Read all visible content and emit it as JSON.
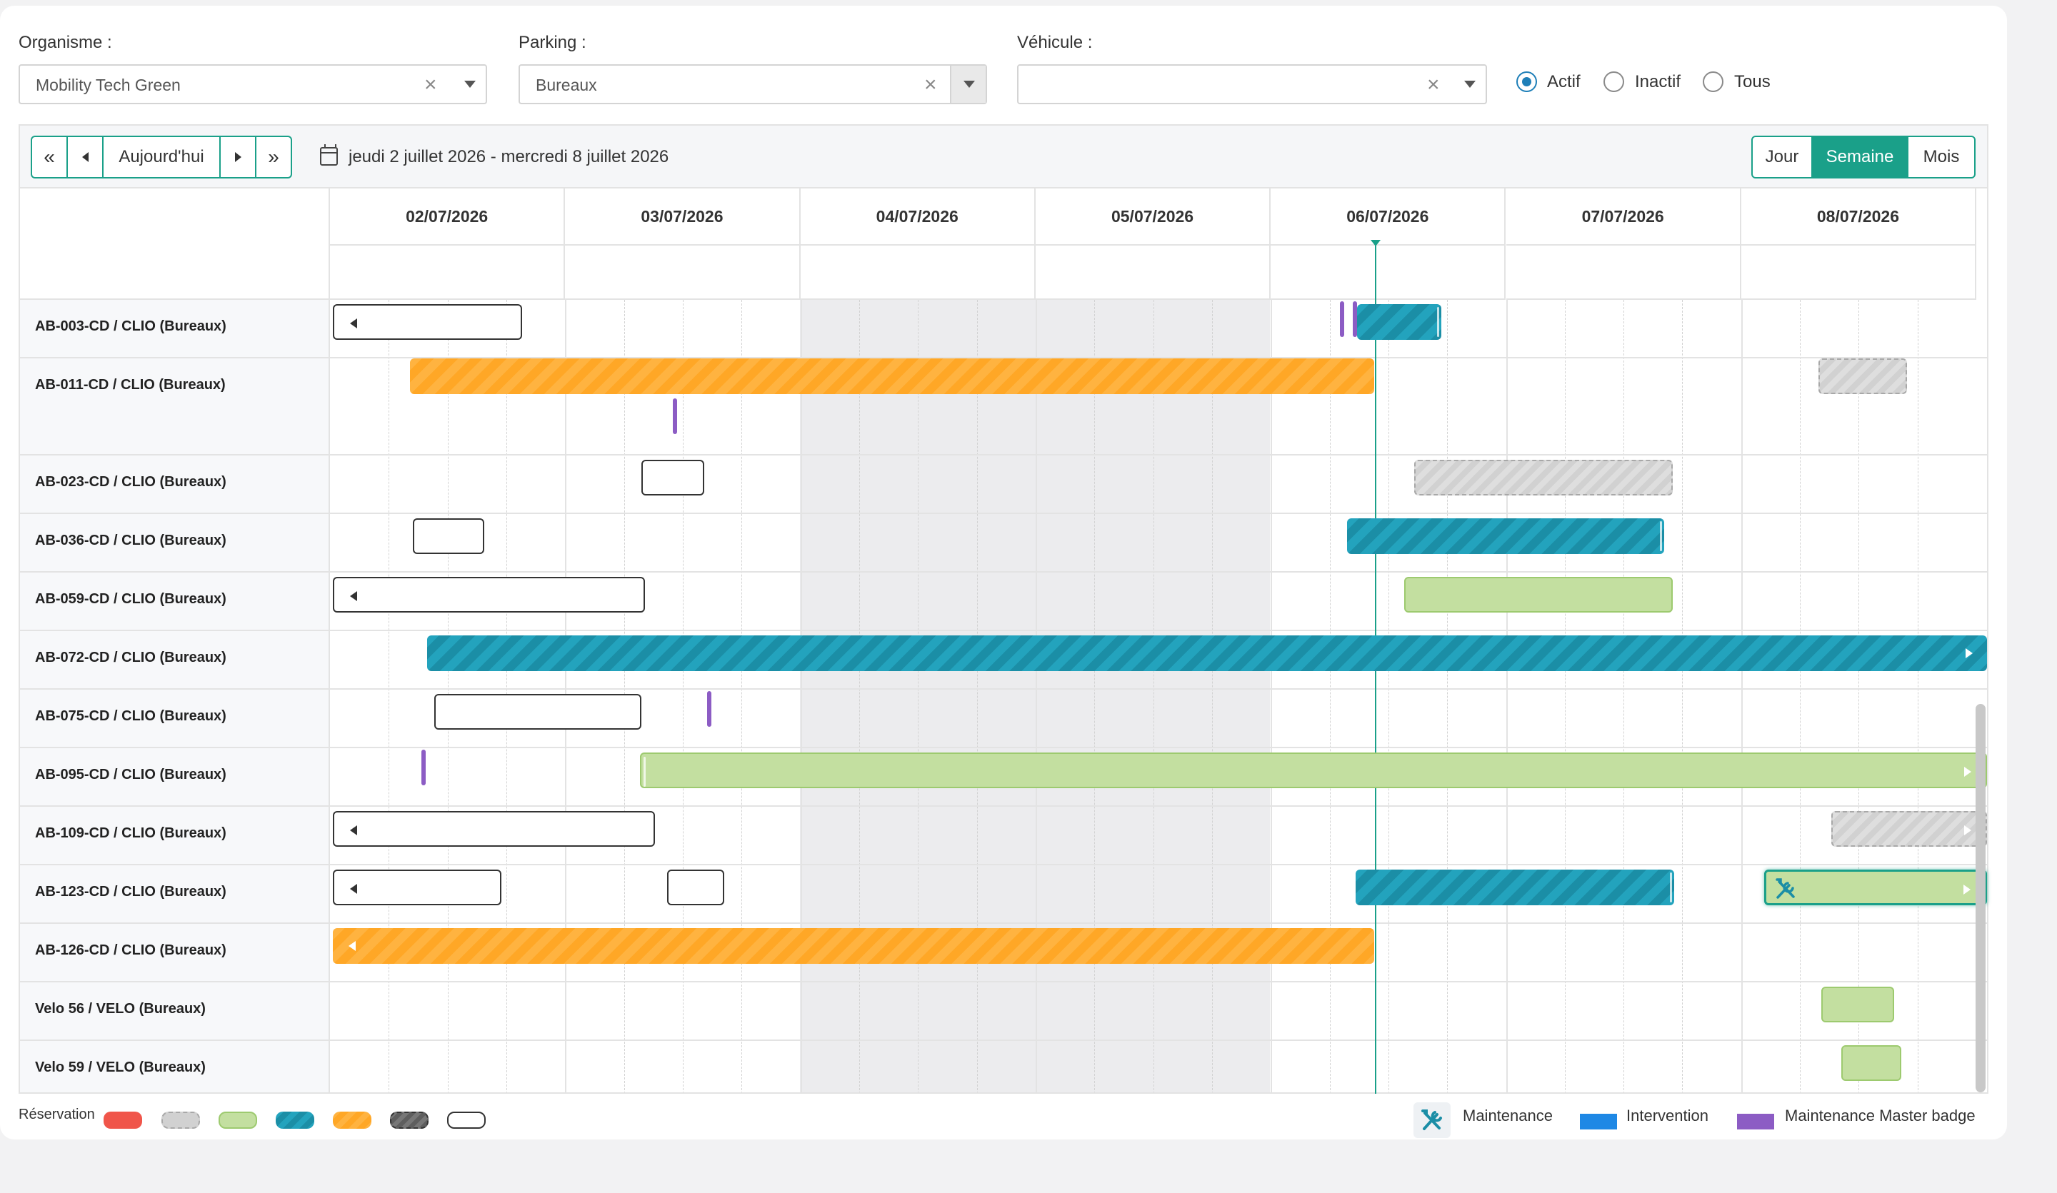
{
  "filters": {
    "organisme": {
      "label": "Organisme :",
      "value": "Mobility Tech Green"
    },
    "parking": {
      "label": "Parking :",
      "value": "Bureaux"
    },
    "vehicule": {
      "label": "Véhicule :",
      "value": ""
    },
    "status": {
      "options": [
        "Actif",
        "Inactif",
        "Tous"
      ],
      "selected": "Actif"
    }
  },
  "toolbar": {
    "first": "«",
    "today": "Aujourd'hui",
    "last": "»",
    "range": "jeudi 2 juillet 2026 - mercredi 8 juillet 2026",
    "views": [
      "Jour",
      "Semaine",
      "Mois"
    ],
    "active_view": "Semaine"
  },
  "dates": [
    "02/07/2026",
    "03/07/2026",
    "04/07/2026",
    "05/07/2026",
    "06/07/2026",
    "07/07/2026",
    "08/07/2026"
  ],
  "resources": [
    "AB-003-CD / CLIO (Bureaux)",
    "AB-011-CD / CLIO (Bureaux)",
    "AB-023-CD / CLIO (Bureaux)",
    "AB-036-CD / CLIO (Bureaux)",
    "AB-059-CD / CLIO (Bureaux)",
    "AB-072-CD / CLIO (Bureaux)",
    "AB-075-CD / CLIO (Bureaux)",
    "AB-095-CD / CLIO (Bureaux)",
    "AB-109-CD / CLIO (Bureaux)",
    "AB-123-CD / CLIO (Bureaux)",
    "AB-126-CD / CLIO (Bureaux)",
    "Velo 56 / VELO (Bureaux)",
    "Velo 59 / VELO (Bureaux)"
  ],
  "legend": {
    "reservation": "Réservation",
    "maintenance": "Maintenance",
    "intervention": "Intervention",
    "master_badge": "Maintenance Master badge"
  },
  "colors": {
    "accent": "#1aa089",
    "teal": "#1b8ea6",
    "orange": "#ffa726",
    "green": "#c3dfa0",
    "gray": "#d1d1d1",
    "red": "#f0554a",
    "intervention": "#1e88e5",
    "master_badge": "#8c5cc4"
  },
  "icons": [
    "calendar-icon",
    "wrench-screwdriver-icon",
    "close-icon",
    "chevron-down-icon"
  ]
}
